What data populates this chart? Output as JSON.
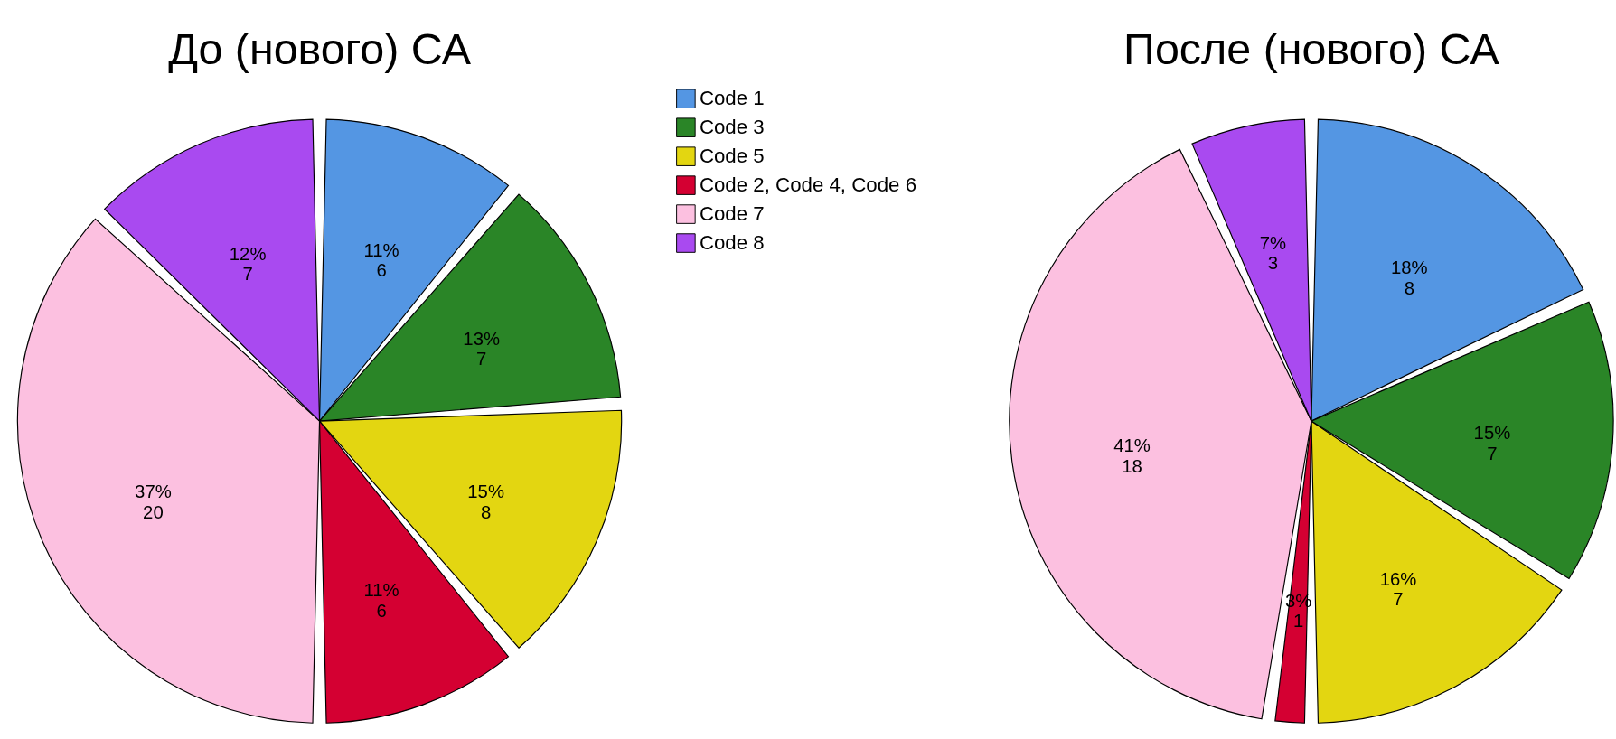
{
  "chart_data": [
    {
      "type": "pie",
      "title": "До (нового) СА",
      "categories": [
        "Code 1",
        "Code 3",
        "Code 5",
        "Code 2, Code 4, Code 6",
        "Code 7",
        "Code 8"
      ],
      "values": [
        6,
        7,
        8,
        6,
        20,
        7
      ],
      "colors": [
        "#5496e3",
        "#2a8527",
        "#e3d611",
        "#d40032",
        "#fcc0e0",
        "#a94af0"
      ],
      "value_labels": [
        "11%\n6",
        "13%\n7",
        "15%\n8",
        "11%\n6",
        "37%\n20",
        "12%\n7"
      ],
      "legend": "right"
    },
    {
      "type": "pie",
      "title": "После (нового) СА",
      "categories": [
        null,
        null,
        null,
        null,
        null,
        null
      ],
      "values": [
        8,
        7,
        7,
        1,
        18,
        3
      ],
      "colors": [
        "#5496e3",
        "#2a8527",
        "#e3d611",
        "#d40032",
        "#fcc0e0",
        "#a94af0"
      ],
      "value_labels": [
        "18%\n8",
        "15%\n7",
        "16%\n7",
        "3%\n1",
        "41%\n18",
        "7%\n3"
      ]
    }
  ]
}
